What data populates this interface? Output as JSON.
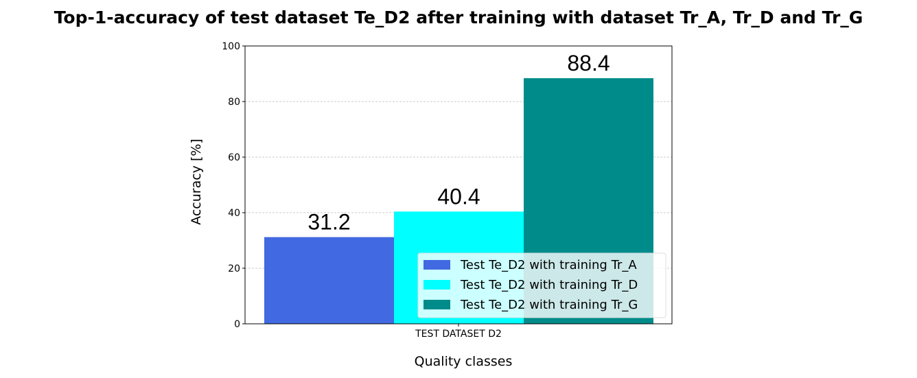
{
  "chart_data": {
    "type": "bar",
    "title": "Top-1-accuracy of test dataset Te_D2 after training with dataset Tr_A, Tr_D and Tr_G",
    "xlabel": "Quality classes",
    "ylabel": "Accuracy [%]",
    "categories": [
      "TEST DATASET D2"
    ],
    "ylim": [
      0,
      100
    ],
    "yticks": [
      0,
      20,
      40,
      60,
      80,
      100
    ],
    "grid": true,
    "legend_position": "lower-right",
    "series": [
      {
        "name": "Test Te_D2 with training  Tr_A",
        "values": [
          31.2
        ],
        "label": "31.2",
        "color": "#4169e1"
      },
      {
        "name": "Test Te_D2 with training  Tr_D",
        "values": [
          40.4
        ],
        "label": "40.4",
        "color": "#00ffff"
      },
      {
        "name": "Test Te_D2 with training  Tr_G",
        "values": [
          88.4
        ],
        "label": "88.4",
        "color": "#008b8b"
      }
    ]
  }
}
